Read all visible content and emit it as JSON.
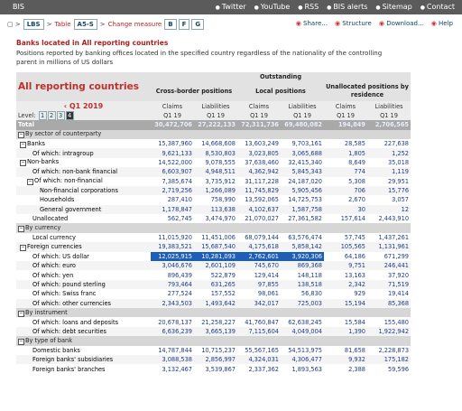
{
  "topbar": {
    "logo": "BIS",
    "links": [
      "Twitter",
      "YouTube",
      "RSS",
      "BIS alerts",
      "Sitemap",
      "Contact"
    ]
  },
  "breadcrumb": {
    "dataset": "LBS",
    "table_label": "Table",
    "table_id": "A5-S",
    "measure_link": "Change measure",
    "measures": [
      "B",
      "F",
      "G"
    ]
  },
  "toolbar": [
    "Share...",
    "Structure",
    "Download...",
    "Help"
  ],
  "title": "Banks located in All reporting countries",
  "description": "Positions reported by banking offices located in the specified country regardless of the nationality of the controlling parent in millions of US dollars",
  "table": {
    "title": "All reporting countries",
    "group_header": "Outstanding",
    "column_groups": [
      "Cross-border positions",
      "Local positions",
      "Unallocated positions by residence"
    ],
    "period": "Q1 2019",
    "measure_labels": [
      "Claims",
      "Liabilities",
      "Claims",
      "Liabilities",
      "Claims",
      "Liabilities"
    ],
    "level_label": "Level:",
    "levels": [
      "1",
      "2",
      "3",
      "4"
    ],
    "period_labels": [
      "Q1 19",
      "Q1 19",
      "Q1 19",
      "Q1 19",
      "Q1 19",
      "Q1 19"
    ],
    "rows": [
      {
        "label": "Total",
        "kind": "total",
        "values": [
          "30,472,706",
          "27,222,133",
          "72,311,736",
          "69,480,082",
          "194,849",
          "2,706,565"
        ]
      },
      {
        "label": "By sector of counterparty",
        "kind": "section",
        "toggle": true
      },
      {
        "label": "Banks",
        "level": 0,
        "toggle": true,
        "values": [
          "15,387,960",
          "14,668,608",
          "13,603,249",
          "9,703,161",
          "28,585",
          "227,638"
        ]
      },
      {
        "label": "Of which: intragroup",
        "level": 1,
        "values": [
          "9,621,133",
          "8,530,803",
          "3,023,805",
          "3,065,688",
          "1,805",
          "1,252"
        ]
      },
      {
        "label": "Non-banks",
        "level": 0,
        "toggle": true,
        "values": [
          "14,522,000",
          "9,078,555",
          "37,638,460",
          "32,415,340",
          "8,649",
          "35,018"
        ]
      },
      {
        "label": "Of which: non-bank financial",
        "level": 1,
        "values": [
          "6,603,907",
          "4,948,511",
          "4,362,942",
          "5,845,343",
          "774",
          "1,119"
        ]
      },
      {
        "label": "Of which: non-financial",
        "level": 1,
        "toggle": true,
        "values": [
          "7,385,674",
          "3,735,912",
          "31,117,228",
          "24,187,020",
          "5,308",
          "29,951"
        ]
      },
      {
        "label": "Non-financial corporations",
        "level": 2,
        "values": [
          "2,719,256",
          "1,266,089",
          "11,745,829",
          "5,905,456",
          "706",
          "15,776"
        ]
      },
      {
        "label": "Households",
        "level": 2,
        "values": [
          "287,410",
          "758,990",
          "13,592,065",
          "14,725,753",
          "2,670",
          "3,057"
        ]
      },
      {
        "label": "General government",
        "level": 2,
        "values": [
          "1,178,847",
          "113,638",
          "4,102,637",
          "1,587,758",
          "30",
          "12"
        ]
      },
      {
        "label": "Unallocated",
        "level": 1,
        "values": [
          "562,745",
          "3,474,970",
          "21,070,027",
          "27,361,582",
          "157,614",
          "2,443,910"
        ]
      },
      {
        "label": "By currency",
        "kind": "section",
        "toggle": true
      },
      {
        "label": "Local currency",
        "level": 1,
        "values": [
          "11,015,920",
          "11,451,006",
          "68,079,144",
          "63,576,474",
          "57,745",
          "1,437,261"
        ]
      },
      {
        "label": "Foreign currencies",
        "level": 0,
        "toggle": true,
        "values": [
          "19,383,521",
          "15,687,540",
          "4,175,618",
          "5,858,142",
          "105,565",
          "1,131,961"
        ]
      },
      {
        "label": "Of which: US dollar",
        "level": 1,
        "selected": [
          true,
          true,
          true,
          true,
          false,
          false
        ],
        "values": [
          "12,025,915",
          "10,281,093",
          "2,762,601",
          "3,920,306",
          "64,186",
          "671,299"
        ]
      },
      {
        "label": "Of which: euro",
        "level": 1,
        "values": [
          "3,046,676",
          "2,601,109",
          "745,670",
          "869,368",
          "9,751",
          "246,441"
        ]
      },
      {
        "label": "Of which: yen",
        "level": 1,
        "values": [
          "896,439",
          "522,879",
          "129,414",
          "148,118",
          "13,163",
          "37,920"
        ]
      },
      {
        "label": "Of which: pound sterling",
        "level": 1,
        "values": [
          "793,464",
          "631,265",
          "97,855",
          "138,518",
          "2,342",
          "71,519"
        ]
      },
      {
        "label": "Of which: Swiss franc",
        "level": 1,
        "values": [
          "277,524",
          "157,552",
          "98,061",
          "56,830",
          "929",
          "19,414"
        ]
      },
      {
        "label": "Of which: other currencies",
        "level": 1,
        "values": [
          "2,343,503",
          "1,493,642",
          "342,017",
          "725,003",
          "15,194",
          "85,368"
        ]
      },
      {
        "label": "By instrument",
        "kind": "section",
        "toggle": true
      },
      {
        "label": "Of which: loans and deposits",
        "level": 1,
        "values": [
          "20,678,137",
          "21,258,227",
          "41,760,847",
          "62,638,245",
          "15,584",
          "155,480"
        ]
      },
      {
        "label": "Of which: debt securities",
        "level": 1,
        "values": [
          "6,636,239",
          "3,665,139",
          "7,115,604",
          "4,049,004",
          "1,390",
          "1,922,942"
        ]
      },
      {
        "label": "By type of bank",
        "kind": "section",
        "toggle": true
      },
      {
        "label": "Domestic banks",
        "level": 1,
        "values": [
          "14,787,844",
          "10,715,237",
          "55,567,165",
          "54,513,975",
          "81,658",
          "2,228,873"
        ]
      },
      {
        "label": "Foreign banks' subsidiaries",
        "level": 1,
        "values": [
          "3,088,538",
          "2,856,997",
          "4,324,031",
          "4,306,477",
          "9,932",
          "175,182"
        ]
      },
      {
        "label": "Foreign banks' branches",
        "level": 1,
        "values": [
          "3,132,467",
          "3,539,867",
          "2,337,362",
          "1,893,563",
          "2,388",
          "59,596"
        ]
      }
    ]
  }
}
